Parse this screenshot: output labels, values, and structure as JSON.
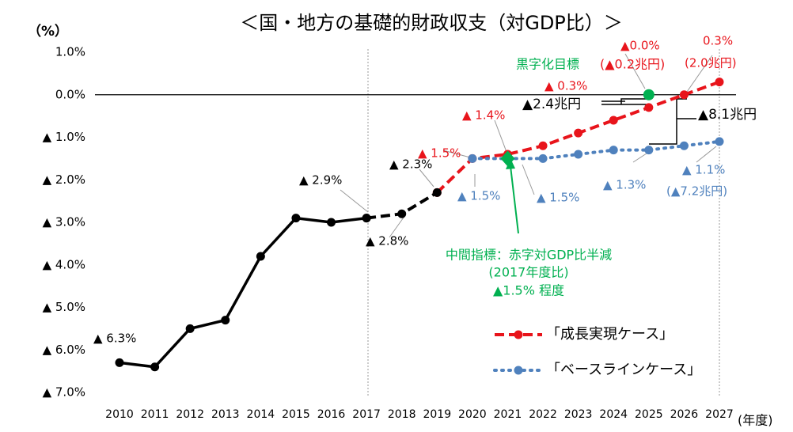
{
  "chart_data": {
    "type": "line",
    "title": "＜国・地方の基礎的財政収支（対GDP比）＞",
    "y_axis_label": "（%）",
    "x_axis_label": "(年度)",
    "categories": [
      "2010",
      "2011",
      "2012",
      "2013",
      "2014",
      "2015",
      "2016",
      "2017",
      "2018",
      "2019",
      "2020",
      "2021",
      "2022",
      "2023",
      "2024",
      "2025",
      "2026",
      "2027"
    ],
    "ylim": [
      -7,
      1
    ],
    "yticks": [
      {
        "value": 1,
        "label": "1.0%"
      },
      {
        "value": 0,
        "label": "0.0%"
      },
      {
        "value": -1,
        "label": "▲ 1.0%"
      },
      {
        "value": -2,
        "label": "▲ 2.0%"
      },
      {
        "value": -3,
        "label": "▲ 3.0%"
      },
      {
        "value": -4,
        "label": "▲ 4.0%"
      },
      {
        "value": -5,
        "label": "▲ 5.0%"
      },
      {
        "value": -6,
        "label": "▲ 6.0%"
      },
      {
        "value": -7,
        "label": "▲ 7.0%"
      }
    ],
    "legend": "lower right",
    "series": [
      {
        "name": "「成長実現ケース」",
        "color": "#e8141b",
        "line_style": "dashed",
        "values": [
          null,
          null,
          null,
          null,
          null,
          null,
          null,
          null,
          null,
          -2.3,
          -1.5,
          -1.4,
          -1.2,
          -0.9,
          -0.6,
          -0.3,
          0.0,
          0.3
        ]
      },
      {
        "name": "「ベースラインケース」",
        "color": "#4f81bd",
        "line_style": "dotted",
        "values": [
          null,
          null,
          null,
          null,
          null,
          null,
          null,
          null,
          null,
          null,
          -1.5,
          -1.5,
          -1.5,
          -1.4,
          -1.3,
          -1.3,
          -1.2,
          -1.1
        ]
      },
      {
        "color": "#000000",
        "line_style": "dashed",
        "values": [
          null,
          null,
          null,
          null,
          null,
          null,
          null,
          -2.9,
          -2.8,
          -2.3,
          null,
          null,
          null,
          null,
          null,
          null,
          null,
          null
        ]
      },
      {
        "color": "#000000",
        "line_style": "solid",
        "values": [
          -6.3,
          -6.4,
          -5.5,
          -5.3,
          -3.8,
          -2.9,
          -3.0,
          -2.9,
          null,
          null,
          null,
          null,
          null,
          null,
          null,
          null,
          null,
          null
        ]
      }
    ],
    "targets": {
      "color": "#00b050",
      "points": [
        {
          "x": "2021",
          "value": -1.5,
          "shape": "diamond"
        },
        {
          "x": "2025",
          "value": 0,
          "shape": "circle"
        }
      ]
    },
    "annotations": [
      "▲ 6.3%",
      "▲ 2.9%",
      "▲ 2.3%",
      "▲ 2.8%",
      "▲ 1.5%",
      "▲ 1.4%",
      "▲ 0.3%",
      "▲0.0%",
      "0.3%",
      "黒字化目標",
      "(▲0.2兆円)",
      "(2.0兆円)",
      "▲2.4兆円",
      "▲8.1兆円",
      "▲ 1.5%",
      "▲ 1.5%",
      "▲ 1.3%",
      "▲ 1.1%",
      "(▲7.2兆円)",
      "中間指標：赤字対GDP比半減",
      "(2017年度比)",
      "▲1.5% 程度"
    ]
  }
}
